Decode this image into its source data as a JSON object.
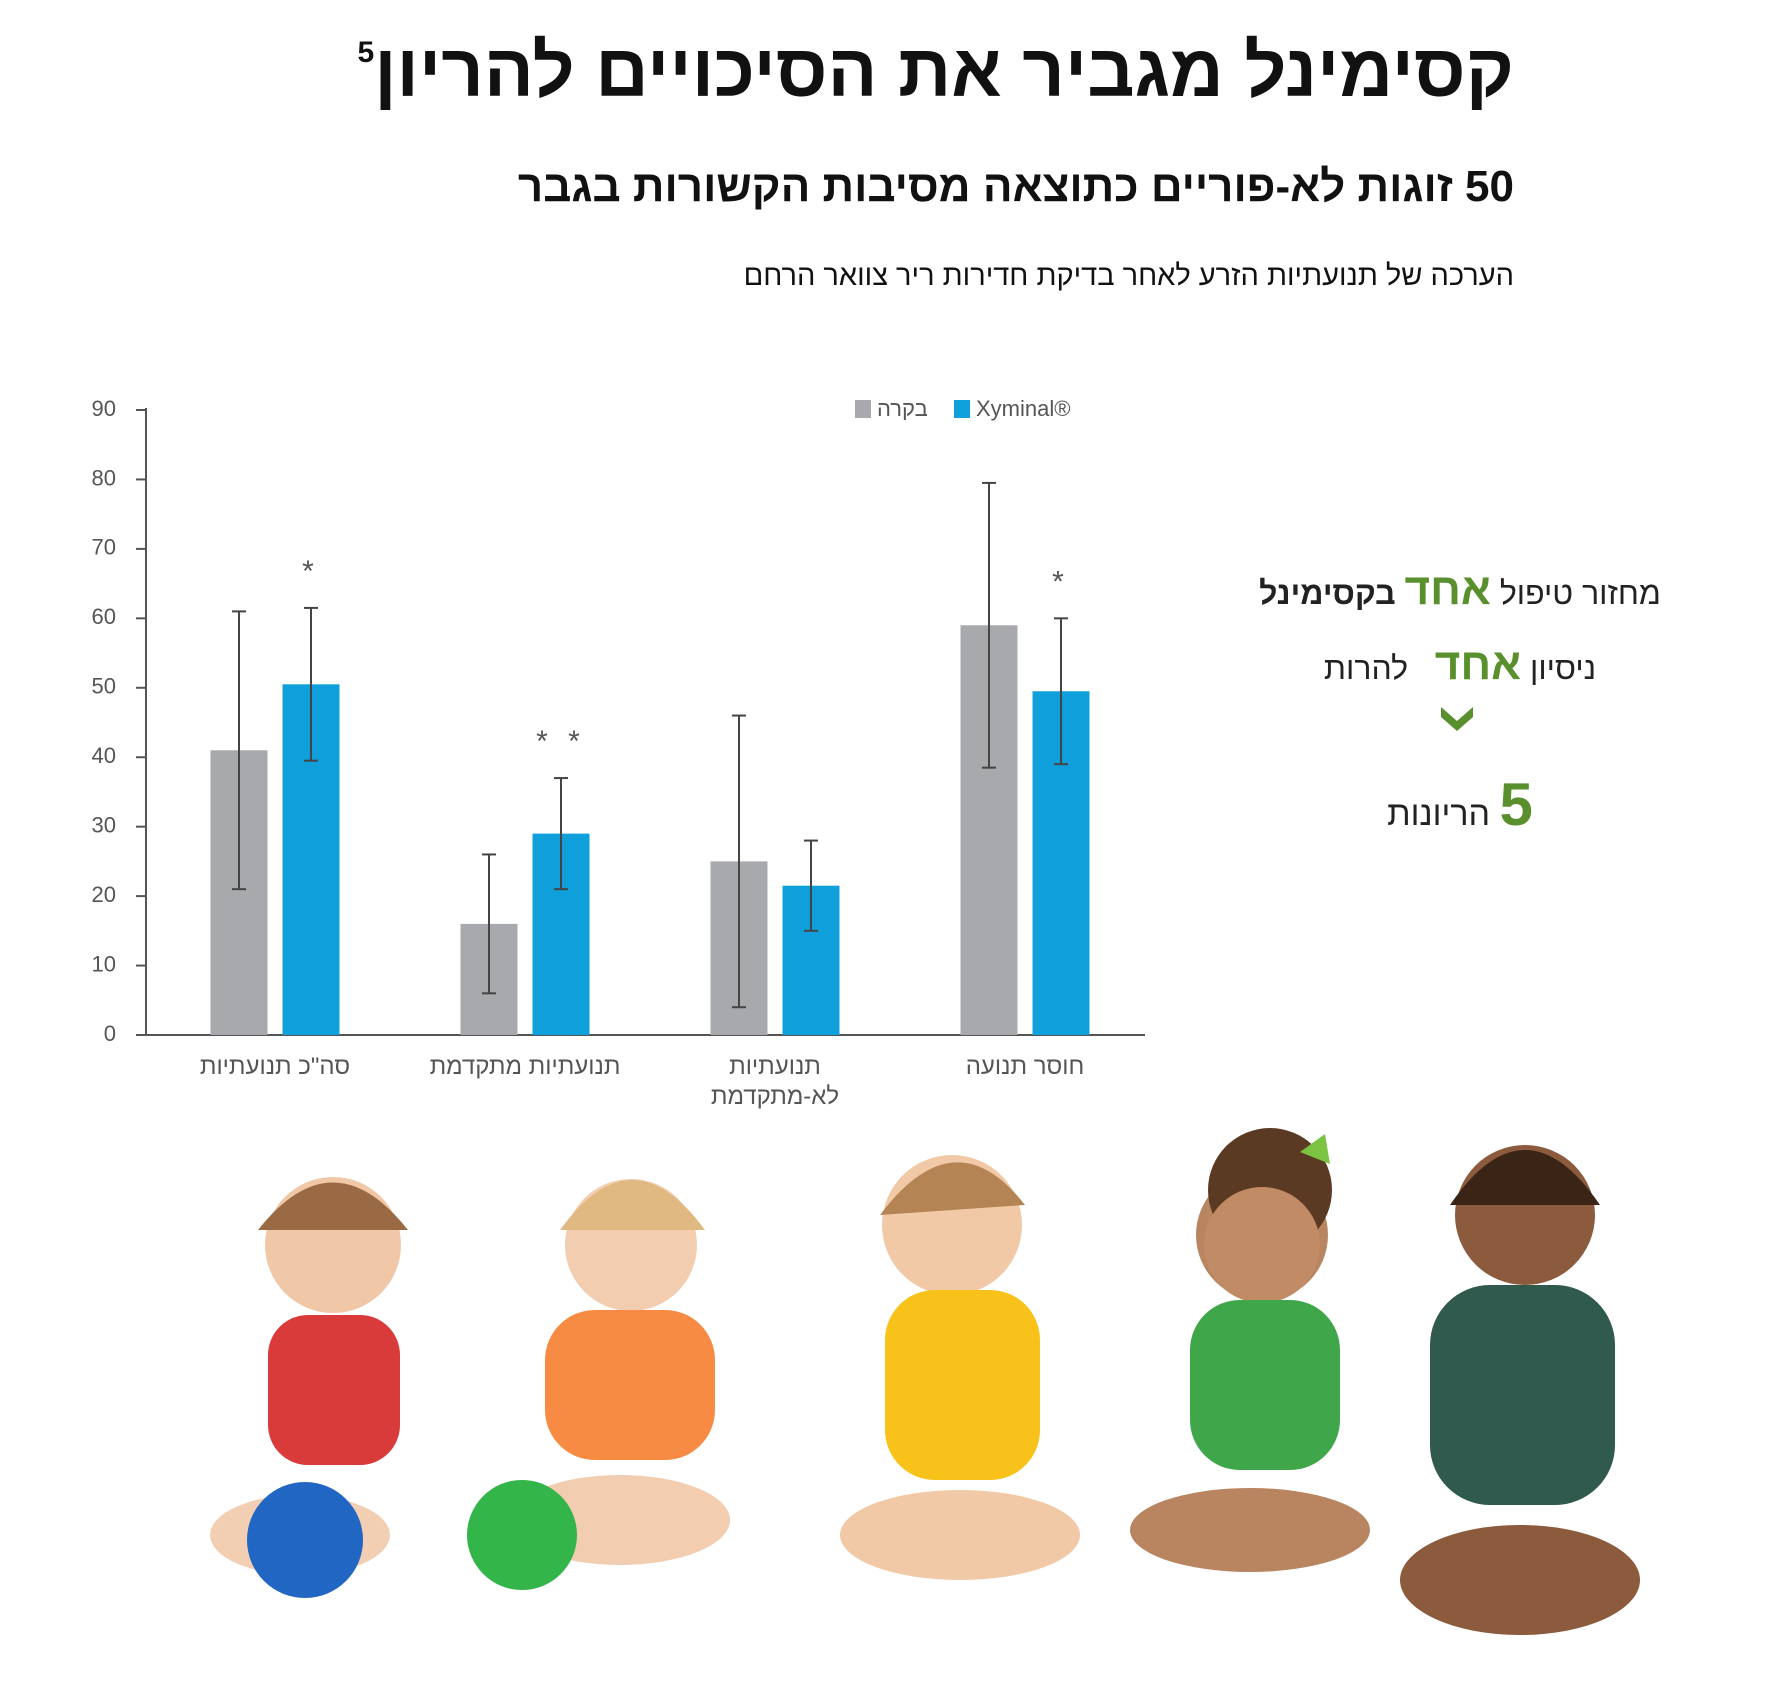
{
  "header": {
    "title": "קסימינל מגביר את הסיכויים להריון",
    "title_ref": "5",
    "subtitle": "50 זוגות לא-פוריים כתוצאה מסיבות הקשורות בגבר",
    "caption": "הערכה של תנועתיות הזרע לאחר בדיקת חדירות ריר צוואר הרחם"
  },
  "chart_data": {
    "type": "bar",
    "categories": [
      "סה\"כ תנועתיות",
      "תנועתיות מתקדמת",
      "תנועתיות לא-מתקדמת",
      "חוסר תנועה"
    ],
    "series": [
      {
        "name": "בקרה",
        "color": "#a7a9ac",
        "values": [
          41,
          16,
          25,
          59
        ],
        "errors": [
          20,
          10,
          21,
          20.5
        ]
      },
      {
        "name": "Xyminal®",
        "color": "#0fa0dc",
        "values": [
          50.5,
          29,
          21.5,
          49.5
        ],
        "errors": [
          11,
          8,
          6.5,
          10.5
        ]
      }
    ],
    "significance": [
      "*",
      "* *",
      null,
      "*"
    ],
    "ylim": [
      0,
      90
    ],
    "yticks": [
      0,
      10,
      20,
      30,
      40,
      50,
      60,
      70,
      80,
      90
    ],
    "grid": false
  },
  "side_note": {
    "accent_color": "#5a8f2e",
    "line1": [
      "מחזור טיפול",
      "אחד",
      "בקסימינל"
    ],
    "line2": [
      "ניסיון",
      "אחד",
      "להרות"
    ],
    "line3": [
      "5",
      "הריונות"
    ]
  }
}
